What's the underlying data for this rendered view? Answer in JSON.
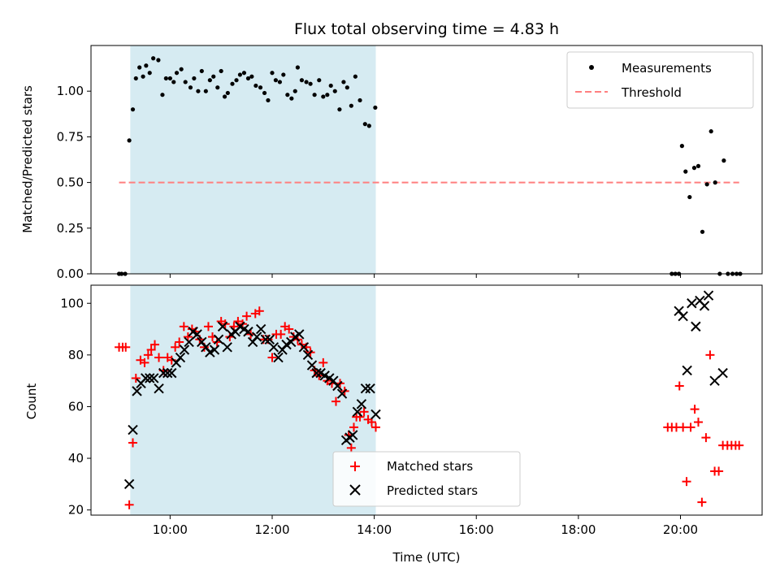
{
  "chart_data": {
    "title": "Flux total observing time = 4.83 h",
    "xlabel": "Time (UTC)",
    "x_units": "hours UTC",
    "xlim": [
      8.45,
      21.6
    ],
    "xticks": [
      {
        "value": 10,
        "label": "10:00"
      },
      {
        "value": 12,
        "label": "12:00"
      },
      {
        "value": 14,
        "label": "14:00"
      },
      {
        "value": 16,
        "label": "16:00"
      },
      {
        "value": 18,
        "label": "18:00"
      },
      {
        "value": 20,
        "label": "20:00"
      }
    ],
    "shaded_span": [
      9.22,
      14.03
    ],
    "shade_color": "#add8e6",
    "top": {
      "type": "scatter",
      "ylabel": "Matched/Predicted stars",
      "ylim": [
        0,
        1.25
      ],
      "yticks": [
        {
          "value": 0,
          "label": "0.00"
        },
        {
          "value": 0.25,
          "label": "0.25"
        },
        {
          "value": 0.5,
          "label": "0.50"
        },
        {
          "value": 0.75,
          "label": "0.75"
        },
        {
          "value": 1.0,
          "label": "1.00"
        }
      ],
      "threshold": {
        "label": "Threshold",
        "value": 0.5,
        "x_range": [
          9.0,
          21.15
        ],
        "color": "#ff7f7f"
      },
      "measurements": {
        "label": "Measurements",
        "color": "#000000",
        "points": [
          [
            9.0,
            0
          ],
          [
            9.05,
            0
          ],
          [
            9.12,
            0
          ],
          [
            9.2,
            0.73
          ],
          [
            9.27,
            0.9
          ],
          [
            9.33,
            1.07
          ],
          [
            9.4,
            1.13
          ],
          [
            9.47,
            1.08
          ],
          [
            9.53,
            1.14
          ],
          [
            9.6,
            1.1
          ],
          [
            9.67,
            1.18
          ],
          [
            9.77,
            1.17
          ],
          [
            9.85,
            0.98
          ],
          [
            9.92,
            1.07
          ],
          [
            10.0,
            1.07
          ],
          [
            10.07,
            1.05
          ],
          [
            10.13,
            1.1
          ],
          [
            10.22,
            1.12
          ],
          [
            10.3,
            1.05
          ],
          [
            10.4,
            1.02
          ],
          [
            10.47,
            1.07
          ],
          [
            10.55,
            1.0
          ],
          [
            10.62,
            1.11
          ],
          [
            10.7,
            1.0
          ],
          [
            10.78,
            1.06
          ],
          [
            10.85,
            1.08
          ],
          [
            10.93,
            1.02
          ],
          [
            11.0,
            1.11
          ],
          [
            11.07,
            0.97
          ],
          [
            11.13,
            0.99
          ],
          [
            11.22,
            1.04
          ],
          [
            11.3,
            1.06
          ],
          [
            11.37,
            1.09
          ],
          [
            11.45,
            1.1
          ],
          [
            11.53,
            1.07
          ],
          [
            11.6,
            1.08
          ],
          [
            11.68,
            1.03
          ],
          [
            11.77,
            1.02
          ],
          [
            11.85,
            0.99
          ],
          [
            11.92,
            0.95
          ],
          [
            12.0,
            1.1
          ],
          [
            12.07,
            1.06
          ],
          [
            12.15,
            1.05
          ],
          [
            12.22,
            1.09
          ],
          [
            12.3,
            0.98
          ],
          [
            12.38,
            0.96
          ],
          [
            12.45,
            1.0
          ],
          [
            12.5,
            1.13
          ],
          [
            12.58,
            1.06
          ],
          [
            12.67,
            1.05
          ],
          [
            12.75,
            1.04
          ],
          [
            12.83,
            0.98
          ],
          [
            12.92,
            1.06
          ],
          [
            13.0,
            0.97
          ],
          [
            13.08,
            0.98
          ],
          [
            13.15,
            1.03
          ],
          [
            13.23,
            1.0
          ],
          [
            13.32,
            0.9
          ],
          [
            13.4,
            1.05
          ],
          [
            13.47,
            1.02
          ],
          [
            13.55,
            0.92
          ],
          [
            13.63,
            1.08
          ],
          [
            13.72,
            0.95
          ],
          [
            13.82,
            0.82
          ],
          [
            13.9,
            0.81
          ],
          [
            14.02,
            0.91
          ],
          [
            19.83,
            0
          ],
          [
            19.9,
            0
          ],
          [
            19.97,
            0
          ],
          [
            20.03,
            0.7
          ],
          [
            20.1,
            0.56
          ],
          [
            20.18,
            0.42
          ],
          [
            20.27,
            0.58
          ],
          [
            20.35,
            0.59
          ],
          [
            20.43,
            0.23
          ],
          [
            20.52,
            0.49
          ],
          [
            20.6,
            0.78
          ],
          [
            20.68,
            0.5
          ],
          [
            20.77,
            0
          ],
          [
            20.85,
            0.62
          ],
          [
            20.93,
            0
          ],
          [
            21.02,
            0
          ],
          [
            21.1,
            0
          ],
          [
            21.17,
            0
          ]
        ]
      },
      "legend": {
        "position": "upper right",
        "entries": [
          "Measurements",
          "Threshold"
        ]
      }
    },
    "bottom": {
      "type": "scatter",
      "ylabel": "Count",
      "ylim": [
        18,
        107
      ],
      "yticks": [
        {
          "value": 20,
          "label": "20"
        },
        {
          "value": 40,
          "label": "40"
        },
        {
          "value": 60,
          "label": "60"
        },
        {
          "value": 80,
          "label": "80"
        },
        {
          "value": 100,
          "label": "100"
        }
      ],
      "series": [
        {
          "name": "Matched stars",
          "marker": "plus",
          "color": "#ff0000",
          "points": [
            [
              9.0,
              83
            ],
            [
              9.07,
              83
            ],
            [
              9.13,
              83
            ],
            [
              9.2,
              22
            ],
            [
              9.27,
              46
            ],
            [
              9.33,
              71
            ],
            [
              9.42,
              78
            ],
            [
              9.5,
              77
            ],
            [
              9.57,
              80
            ],
            [
              9.63,
              82
            ],
            [
              9.7,
              84
            ],
            [
              9.78,
              79
            ],
            [
              9.87,
              74
            ],
            [
              9.95,
              79
            ],
            [
              10.03,
              78
            ],
            [
              10.1,
              83
            ],
            [
              10.18,
              85
            ],
            [
              10.27,
              91
            ],
            [
              10.35,
              87
            ],
            [
              10.43,
              90
            ],
            [
              10.5,
              89
            ],
            [
              10.58,
              86
            ],
            [
              10.67,
              83
            ],
            [
              10.75,
              91
            ],
            [
              10.83,
              87
            ],
            [
              10.92,
              85
            ],
            [
              11.0,
              93
            ],
            [
              11.08,
              92
            ],
            [
              11.17,
              87
            ],
            [
              11.25,
              91
            ],
            [
              11.33,
              93
            ],
            [
              11.42,
              92
            ],
            [
              11.5,
              95
            ],
            [
              11.58,
              88
            ],
            [
              11.67,
              96
            ],
            [
              11.75,
              97
            ],
            [
              11.83,
              86
            ],
            [
              11.92,
              86
            ],
            [
              12.0,
              79
            ],
            [
              12.08,
              88
            ],
            [
              12.17,
              88
            ],
            [
              12.25,
              91
            ],
            [
              12.33,
              90
            ],
            [
              12.42,
              87
            ],
            [
              12.5,
              86
            ],
            [
              12.58,
              84
            ],
            [
              12.67,
              83
            ],
            [
              12.75,
              81
            ],
            [
              12.83,
              74
            ],
            [
              12.92,
              72
            ],
            [
              13.0,
              77
            ],
            [
              13.08,
              70
            ],
            [
              13.17,
              69
            ],
            [
              13.25,
              62
            ],
            [
              13.33,
              69
            ],
            [
              13.42,
              66
            ],
            [
              13.5,
              49
            ],
            [
              13.55,
              44
            ],
            [
              13.6,
              52
            ],
            [
              13.65,
              56
            ],
            [
              13.72,
              56
            ],
            [
              13.8,
              58
            ],
            [
              13.88,
              55
            ],
            [
              13.95,
              54
            ],
            [
              14.03,
              52
            ],
            [
              19.75,
              52
            ],
            [
              19.83,
              52
            ],
            [
              19.92,
              52
            ],
            [
              19.98,
              68
            ],
            [
              20.05,
              52
            ],
            [
              20.12,
              31
            ],
            [
              20.2,
              52
            ],
            [
              20.28,
              59
            ],
            [
              20.35,
              54
            ],
            [
              20.42,
              23
            ],
            [
              20.5,
              48
            ],
            [
              20.58,
              80
            ],
            [
              20.67,
              35
            ],
            [
              20.75,
              35
            ],
            [
              20.83,
              45
            ],
            [
              20.92,
              45
            ],
            [
              21.0,
              45
            ],
            [
              21.08,
              45
            ],
            [
              21.15,
              45
            ]
          ]
        },
        {
          "name": "Predicted stars",
          "marker": "x",
          "color": "#000000",
          "points": [
            [
              9.2,
              30
            ],
            [
              9.27,
              51
            ],
            [
              9.35,
              66
            ],
            [
              9.43,
              69
            ],
            [
              9.52,
              71
            ],
            [
              9.6,
              71
            ],
            [
              9.68,
              71
            ],
            [
              9.78,
              67
            ],
            [
              9.87,
              73
            ],
            [
              9.95,
              73
            ],
            [
              10.03,
              73
            ],
            [
              10.12,
              77
            ],
            [
              10.2,
              79
            ],
            [
              10.28,
              82
            ],
            [
              10.37,
              85
            ],
            [
              10.45,
              89
            ],
            [
              10.53,
              88
            ],
            [
              10.62,
              85
            ],
            [
              10.7,
              83
            ],
            [
              10.78,
              81
            ],
            [
              10.87,
              82
            ],
            [
              10.95,
              86
            ],
            [
              11.03,
              91
            ],
            [
              11.12,
              83
            ],
            [
              11.2,
              88
            ],
            [
              11.28,
              89
            ],
            [
              11.37,
              91
            ],
            [
              11.45,
              90
            ],
            [
              11.53,
              89
            ],
            [
              11.62,
              85
            ],
            [
              11.7,
              87
            ],
            [
              11.78,
              90
            ],
            [
              11.87,
              86
            ],
            [
              11.95,
              86
            ],
            [
              12.03,
              83
            ],
            [
              12.12,
              79
            ],
            [
              12.2,
              82
            ],
            [
              12.28,
              84
            ],
            [
              12.37,
              85
            ],
            [
              12.45,
              87
            ],
            [
              12.53,
              88
            ],
            [
              12.62,
              83
            ],
            [
              12.7,
              80
            ],
            [
              12.78,
              76
            ],
            [
              12.87,
              73
            ],
            [
              12.95,
              73
            ],
            [
              13.03,
              72
            ],
            [
              13.12,
              71
            ],
            [
              13.2,
              70
            ],
            [
              13.28,
              68
            ],
            [
              13.37,
              65
            ],
            [
              13.45,
              47
            ],
            [
              13.52,
              48
            ],
            [
              13.58,
              49
            ],
            [
              13.67,
              58
            ],
            [
              13.75,
              61
            ],
            [
              13.83,
              67
            ],
            [
              13.92,
              67
            ],
            [
              14.03,
              57
            ],
            [
              19.97,
              97
            ],
            [
              20.05,
              95
            ],
            [
              20.13,
              74
            ],
            [
              20.22,
              100
            ],
            [
              20.3,
              91
            ],
            [
              20.38,
              101
            ],
            [
              20.47,
              99
            ],
            [
              20.55,
              103
            ],
            [
              20.67,
              70
            ],
            [
              20.83,
              73
            ]
          ]
        }
      ],
      "legend": {
        "position": "lower center",
        "entries": [
          "Matched stars",
          "Predicted stars"
        ]
      }
    }
  }
}
